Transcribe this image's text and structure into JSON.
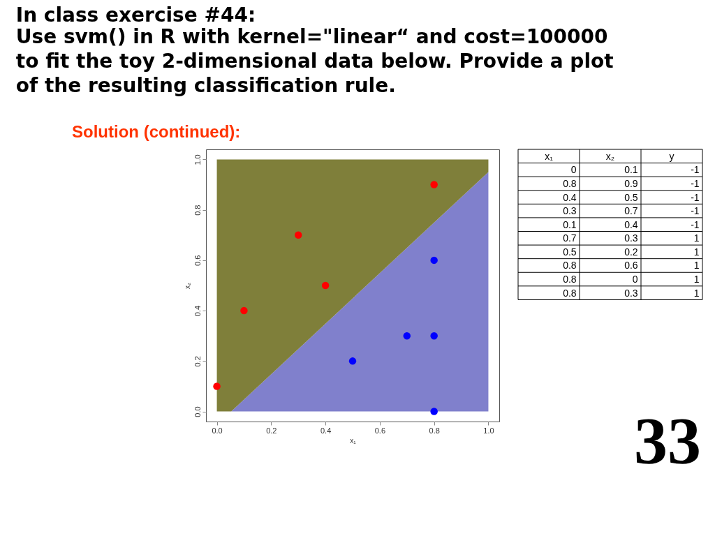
{
  "chart_data": [
    {
      "type": "scatter",
      "title": "In class exercise #44:",
      "subtitle": [
        "Use svm() in R with kernel=\"linear“ and cost=100000",
        "to fit the toy 2-dimensional data below.  Provide a plot",
        "of the resulting classification rule."
      ],
      "xlabel": "x₁",
      "ylabel": "x₂",
      "annotations": [
        "Solution (continued):",
        "33"
      ],
      "series": [
        {
          "type": "area",
          "color": "#8080cc",
          "x": [
            0,
            0.053,
            1
          ],
          "values": [
            0,
            0,
            0.95
          ]
        },
        {
          "type": "area",
          "color": "#7f7f3a",
          "x": [
            0,
            0.053,
            1
          ],
          "values": [
            1,
            1,
            0.05
          ]
        },
        {
          "color": "#ff0000",
          "marker": "circle",
          "x": [
            0,
            0.8,
            0.4,
            0.3,
            0.1
          ],
          "values": [
            0.1,
            0.9,
            0.5,
            0.7,
            0.4
          ]
        },
        {
          "color": "#0000ff",
          "marker": "circle",
          "x": [
            0.7,
            0.5,
            0.8,
            0.8,
            0.8
          ],
          "values": [
            0.3,
            0.2,
            0.6,
            0,
            0.3
          ]
        }
      ],
      "stacked": true,
      "xlim": [
        -0.04,
        1.04
      ],
      "ylim": [
        -0.04,
        1.04
      ],
      "xticks": [
        {
          "value": 0,
          "label": "0.0"
        },
        0.2,
        0.4,
        0.6,
        0.8,
        {
          "value": 1,
          "label": "1.0"
        }
      ],
      "yticks": [
        {
          "value": 0,
          "label": "0.0"
        },
        0.2,
        0.4,
        0.6,
        0.8,
        {
          "value": 1,
          "label": "1.0"
        }
      ]
    },
    {
      "type": "other",
      "categories": [
        "x₁",
        "x₂",
        "y"
      ],
      "annotations": [
        "0",
        "0.1",
        "-1",
        "0.8",
        "0.9",
        "-1",
        "0.4",
        "0.5",
        "-1",
        "0.3",
        "0.7",
        "-1",
        "0.1",
        "0.4",
        "-1",
        "0.7",
        "0.3",
        "1",
        "0.5",
        "0.2",
        "1",
        "0.8",
        "0.6",
        "1",
        "0.8",
        "0",
        "1",
        "0.8",
        "0.3",
        "1"
      ]
    }
  ]
}
